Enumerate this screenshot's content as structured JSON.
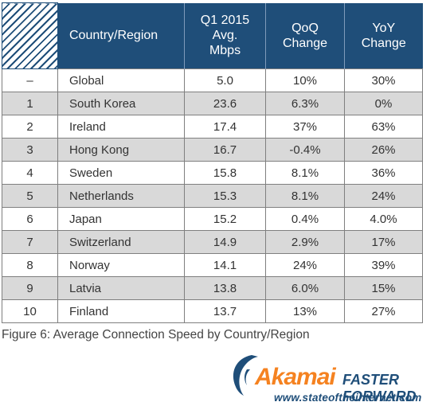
{
  "chart_data": {
    "type": "table",
    "columns": [
      "",
      "Country/Region",
      "Q1 2015 Avg. Mbps",
      "QoQ Change",
      "YoY Change"
    ],
    "rows": [
      [
        "–",
        "Global",
        "5.0",
        "10%",
        "30%"
      ],
      [
        "1",
        "South Korea",
        "23.6",
        "6.3%",
        "0%"
      ],
      [
        "2",
        "Ireland",
        "17.4",
        "37%",
        "63%"
      ],
      [
        "3",
        "Hong Kong",
        "16.7",
        "-0.4%",
        "26%"
      ],
      [
        "4",
        "Sweden",
        "15.8",
        "8.1%",
        "36%"
      ],
      [
        "5",
        "Netherlands",
        "15.3",
        "8.1%",
        "24%"
      ],
      [
        "6",
        "Japan",
        "15.2",
        "0.4%",
        "4.0%"
      ],
      [
        "7",
        "Switzerland",
        "14.9",
        "2.9%",
        "17%"
      ],
      [
        "8",
        "Norway",
        "14.1",
        "24%",
        "39%"
      ],
      [
        "9",
        "Latvia",
        "13.8",
        "6.0%",
        "15%"
      ],
      [
        "10",
        "Finland",
        "13.7",
        "13%",
        "27%"
      ]
    ]
  },
  "header": {
    "country": "Country/Region",
    "speed_line1": "Q1 2015",
    "speed_line2": "Avg.",
    "speed_line3": "Mbps",
    "qoq_line1": "QoQ",
    "qoq_line2": "Change",
    "yoy_line1": "YoY",
    "yoy_line2": "Change"
  },
  "caption": "Figure 6: Average Connection Speed by Country/Region",
  "branding": {
    "logo_text": "Akamai",
    "tagline": "FASTER FORWARD",
    "url": "www.stateoftheinternet.com",
    "colors": {
      "brand_orange": "#f58220",
      "brand_blue": "#1f4e79"
    }
  },
  "colors": {
    "header_bg": "#1f4e79",
    "stripe_gray": "#d9d9d9"
  }
}
